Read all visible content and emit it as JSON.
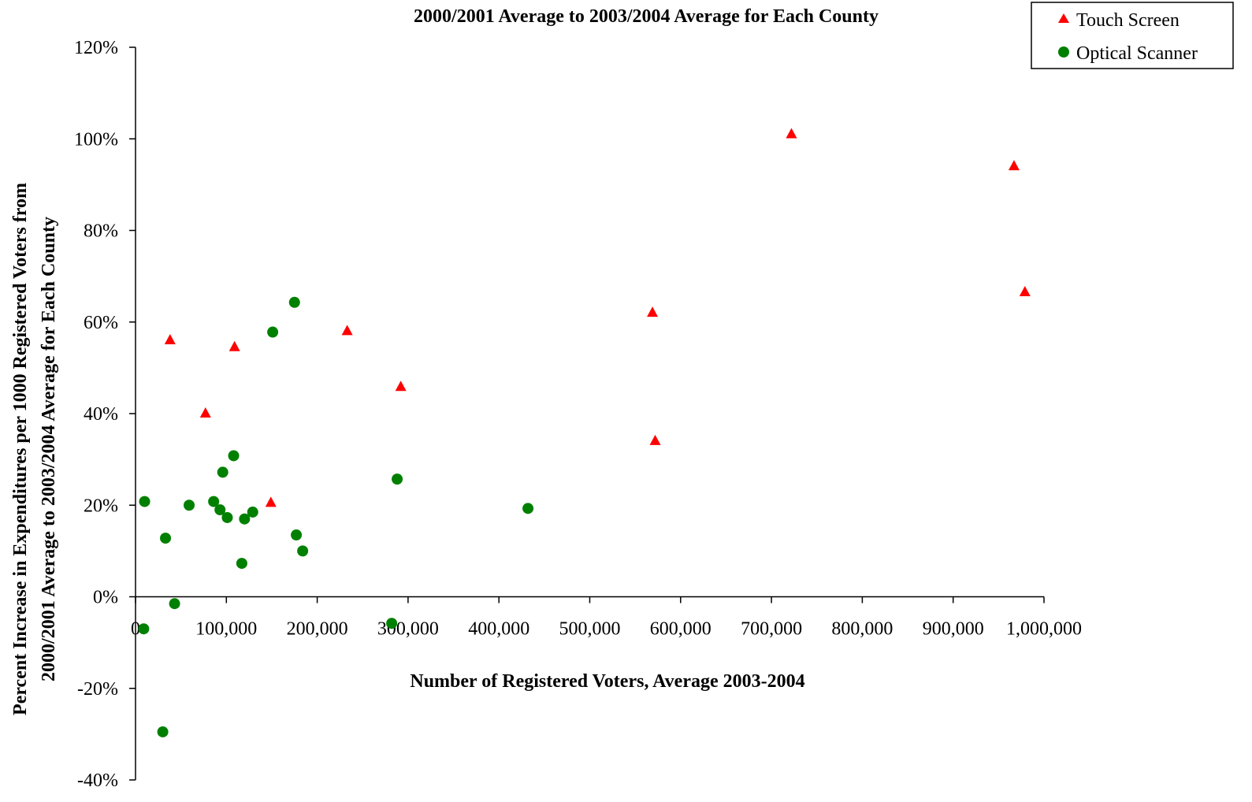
{
  "chart_data": {
    "type": "scatter",
    "title": "2000/2001 Average to  2003/2004 Average for Each County",
    "xlabel": "Number of Registered Voters, Average 2003-2004",
    "ylabel_lines": [
      "Percent Increase in Expenditures per 1000 Registered Voters from",
      "2000/2001 Average to  2003/2004 Average for Each County"
    ],
    "xlim": [
      0,
      1000000
    ],
    "ylim": [
      -40,
      120
    ],
    "x_ticks": [
      0,
      100000,
      200000,
      300000,
      400000,
      500000,
      600000,
      700000,
      800000,
      900000,
      1000000
    ],
    "x_tick_labels": [
      "0",
      "100,000",
      "200,000",
      "300,000",
      "400,000",
      "500,000",
      "600,000",
      "700,000",
      "800,000",
      "900,000",
      "1,000,000"
    ],
    "y_ticks": [
      -40,
      -20,
      0,
      20,
      40,
      60,
      80,
      100,
      120
    ],
    "y_tick_labels": [
      "-40%",
      "-20%",
      "0%",
      "20%",
      "40%",
      "60%",
      "80%",
      "100%",
      "120%"
    ],
    "legend_position": "top-right",
    "series": [
      {
        "name": "Touch Screen",
        "marker": "triangle",
        "color": "#ff0000",
        "points": [
          [
            38000,
            56
          ],
          [
            77000,
            40
          ],
          [
            109000,
            54.5
          ],
          [
            149000,
            20.5
          ],
          [
            233000,
            58
          ],
          [
            292000,
            45.8
          ],
          [
            569000,
            62
          ],
          [
            572000,
            34
          ],
          [
            722000,
            101
          ],
          [
            967000,
            94
          ],
          [
            979000,
            66.5
          ]
        ]
      },
      {
        "name": "Optical Scanner",
        "marker": "circle",
        "color": "#008000",
        "points": [
          [
            9000,
            -7
          ],
          [
            10000,
            20.8
          ],
          [
            30000,
            -29.5
          ],
          [
            33000,
            12.8
          ],
          [
            43000,
            -1.5
          ],
          [
            59000,
            20
          ],
          [
            86000,
            20.8
          ],
          [
            93000,
            19
          ],
          [
            96000,
            27.2
          ],
          [
            101000,
            17.3
          ],
          [
            108000,
            30.8
          ],
          [
            117000,
            7.3
          ],
          [
            120000,
            17
          ],
          [
            129000,
            18.5
          ],
          [
            151000,
            57.8
          ],
          [
            175000,
            64.3
          ],
          [
            177000,
            13.5
          ],
          [
            184000,
            10
          ],
          [
            282000,
            -5.8
          ],
          [
            288000,
            25.7
          ],
          [
            432000,
            19.3
          ]
        ]
      }
    ]
  }
}
